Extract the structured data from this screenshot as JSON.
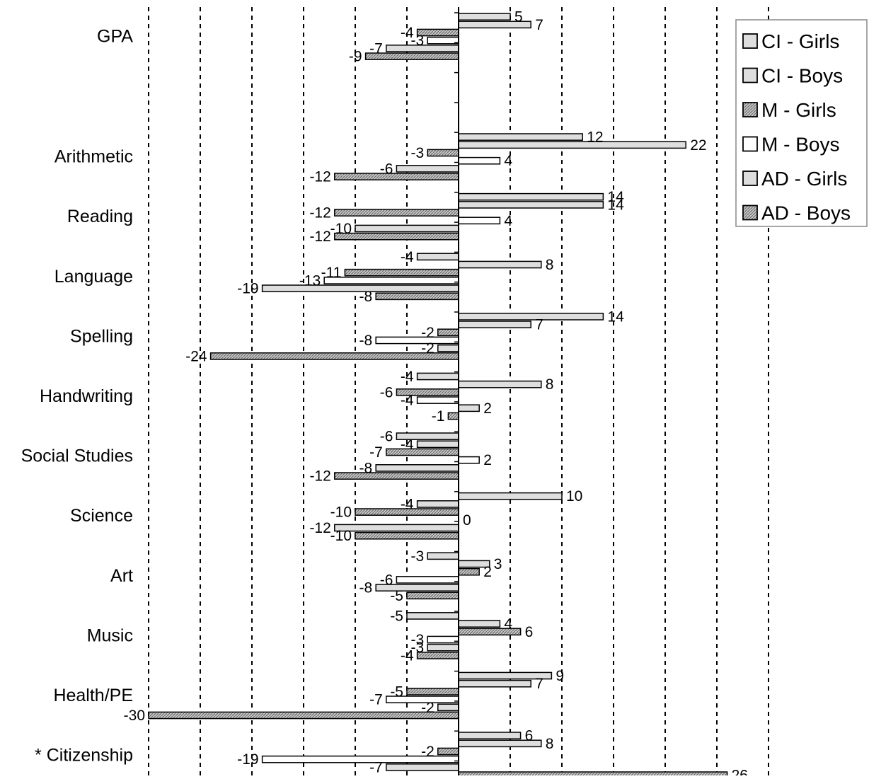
{
  "chart_data": {
    "type": "bar",
    "orientation": "horizontal",
    "categories": [
      "GPA",
      "Arithmetic",
      "Reading",
      "Language",
      "Spelling",
      "Handwriting",
      "Social Studies",
      "Science",
      "Art",
      "Music",
      "Health/PE",
      "* Citizenship"
    ],
    "series": [
      {
        "name": "CI - Girls",
        "values": [
          5,
          12,
          14,
          -4,
          14,
          -4,
          -6,
          10,
          -3,
          -5,
          9,
          6
        ]
      },
      {
        "name": "CI - Boys",
        "values": [
          7,
          22,
          14,
          8,
          7,
          8,
          -4,
          -4,
          3,
          4,
          7,
          8
        ]
      },
      {
        "name": "M - Girls",
        "values": [
          -4,
          -3,
          -12,
          -11,
          -2,
          -6,
          -7,
          -10,
          2,
          6,
          -5,
          -2
        ]
      },
      {
        "name": "M - Boys",
        "values": [
          -3,
          4,
          4,
          -13,
          -8,
          -4,
          2,
          0,
          -6,
          -3,
          -7,
          -19
        ]
      },
      {
        "name": "AD - Girls",
        "values": [
          -7,
          -6,
          -10,
          -19,
          -2,
          2,
          -8,
          -12,
          -8,
          -3,
          -2,
          -7
        ]
      },
      {
        "name": "AD - Boys",
        "values": [
          -9,
          -12,
          -12,
          -8,
          -24,
          -1,
          -12,
          -10,
          -5,
          -4,
          -30,
          26
        ]
      }
    ],
    "xlim": [
      -30,
      30
    ],
    "grid": true,
    "legend_position": "top-right",
    "colors": {
      "bar_fill": "#dedede",
      "bar_stroke": "#000000",
      "hatched_fill": "#9a9a9a",
      "grid": "#000000",
      "axis": "#000000"
    },
    "series_styles": [
      "light",
      "light",
      "hatched",
      "white",
      "light",
      "hatched"
    ]
  }
}
